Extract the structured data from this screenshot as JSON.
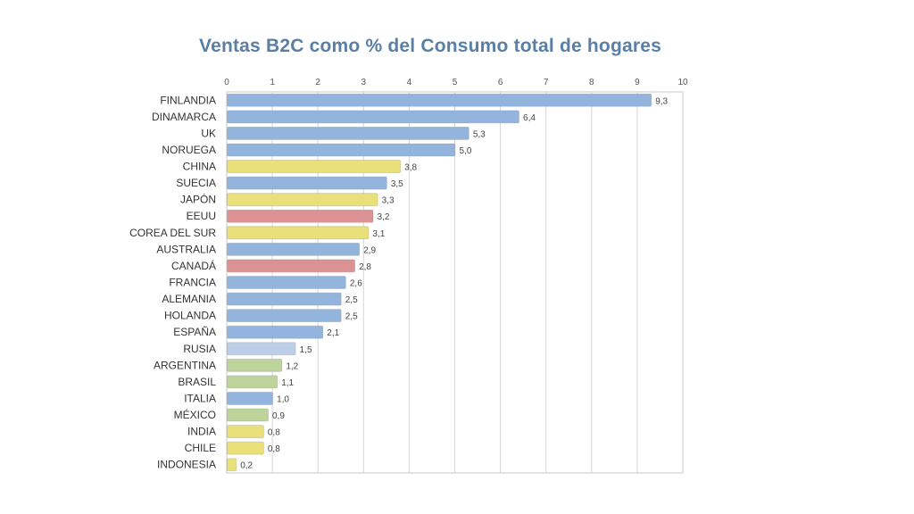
{
  "chart_data": {
    "type": "bar",
    "orientation": "horizontal",
    "title": "Ventas B2C como % del Consumo total de hogares",
    "xlim": [
      0,
      10
    ],
    "ticks": [
      "0",
      "1",
      "2",
      "3",
      "4",
      "5",
      "6",
      "7",
      "8",
      "9",
      "10"
    ],
    "grid": true,
    "colors": {
      "blue": "#93b4dd",
      "yellow": "#e9e07a",
      "red": "#dc9292",
      "lightblue": "#bccfe6",
      "green": "#bcd39a"
    },
    "categories": [
      "FINLANDIA",
      "DINAMARCA",
      "UK",
      "NORUEGA",
      "CHINA",
      "SUECIA",
      "JAPÓN",
      "EEUU",
      "COREA DEL SUR",
      "AUSTRALIA",
      "CANADÁ",
      "FRANCIA",
      "ALEMANIA",
      "HOLANDA",
      "ESPAÑA",
      "RUSIA",
      "ARGENTINA",
      "BRASIL",
      "ITALIA",
      "MÉXICO",
      "INDIA",
      "CHILE",
      "INDONESIA"
    ],
    "values": [
      9.3,
      6.4,
      5.3,
      5.0,
      3.8,
      3.5,
      3.3,
      3.2,
      3.1,
      2.9,
      2.8,
      2.6,
      2.5,
      2.5,
      2.1,
      1.5,
      1.2,
      1.1,
      1.0,
      0.9,
      0.8,
      0.8,
      0.2
    ],
    "value_labels": [
      "9,3",
      "6,4",
      "5,3",
      "5,0",
      "3,8",
      "3,5",
      "3,3",
      "3,2",
      "3,1",
      "2,9",
      "2,8",
      "2,6",
      "2,5",
      "2,5",
      "2,1",
      "1,5",
      "1,2",
      "1,1",
      "1,0",
      "0,9",
      "0,8",
      "0,8",
      "0,2"
    ],
    "bar_colors": [
      "blue",
      "blue",
      "blue",
      "blue",
      "yellow",
      "blue",
      "yellow",
      "red",
      "yellow",
      "blue",
      "red",
      "blue",
      "blue",
      "blue",
      "blue",
      "lightblue",
      "green",
      "green",
      "blue",
      "green",
      "yellow",
      "yellow",
      "yellow"
    ]
  }
}
